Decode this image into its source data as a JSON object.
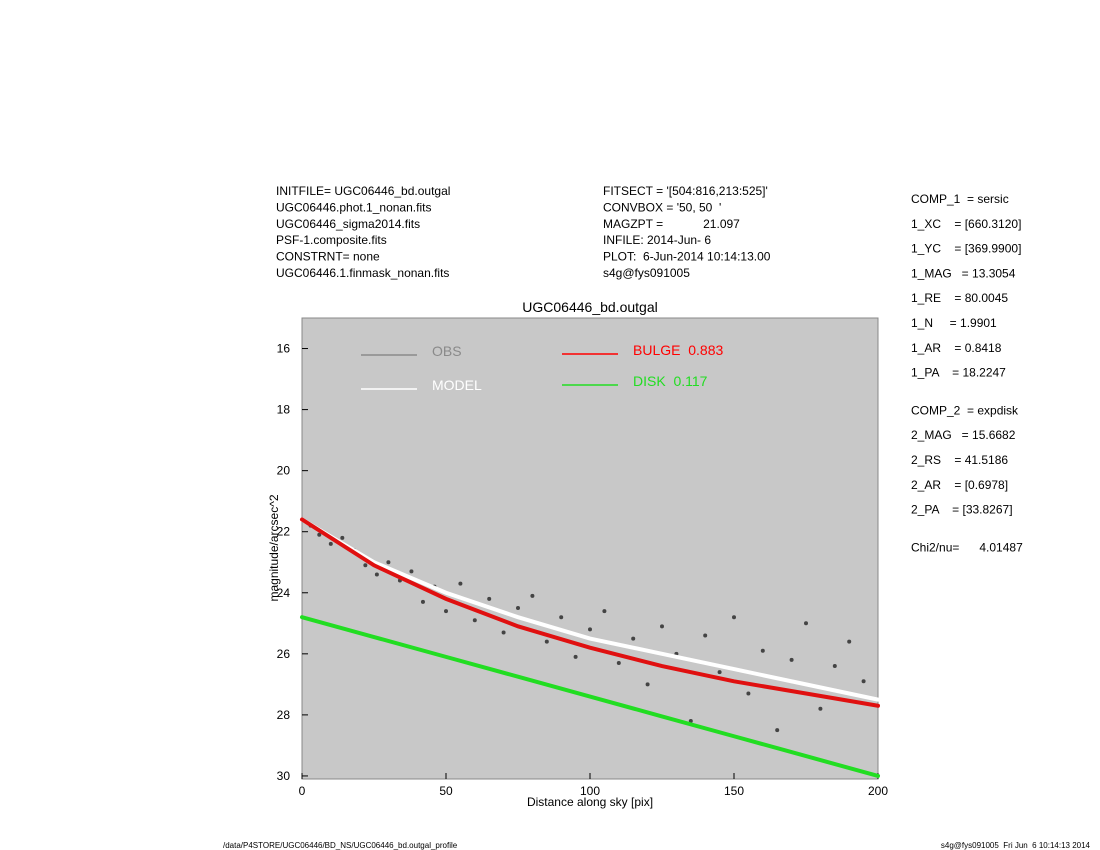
{
  "header_left": [
    "INITFILE= UGC06446_bd.outgal",
    "UGC06446.phot.1_nonan.fits",
    "UGC06446_sigma2014.fits",
    "PSF-1.composite.fits",
    "CONSTRNT= none",
    "UGC06446.1.finmask_nonan.fits"
  ],
  "header_mid": [
    "FITSECT = '[504:816,213:525]'",
    "CONVBOX = '50, 50  '",
    "MAGZPT =            21.097",
    "INFILE: 2014-Jun- 6",
    "PLOT:  6-Jun-2014 10:14:13.00",
    "s4g@fys091005"
  ],
  "params": [
    [
      "COMP_1  = sersic",
      "1_XC    = [660.3120]",
      "1_YC    = [369.9900]",
      "1_MAG   = 13.3054",
      "1_RE    = 80.0045",
      "1_N     = 1.9901",
      "1_AR    = 0.8418",
      "1_PA    = 18.2247"
    ],
    [
      "COMP_2  = expdisk",
      "2_MAG   = 15.6682",
      "2_RS    = 41.5186",
      "2_AR    = [0.6978]",
      "2_PA    = [33.8267]"
    ],
    [
      "Chi2/nu=      4.01487"
    ]
  ],
  "footer_left": "/data/P4STORE/UGC06446/BD_NS/UGC06446_bd.outgal_profile",
  "footer_right": "s4g@fys091005  Fri Jun  6 10:14:13 2014",
  "chart_data": {
    "type": "scatter",
    "title": "UGC06446_bd.outgal",
    "x_label": "Distance along sky [pix]",
    "y_label": "magnitude/arcsec^2",
    "xlim": [
      0,
      200
    ],
    "xticks": [
      0,
      50,
      100,
      150,
      200
    ],
    "ylim": [
      15,
      30.1
    ],
    "y_inverted": true,
    "yticks": [
      16,
      18,
      20,
      22,
      24,
      26,
      28,
      30
    ],
    "background": "#c8c8c8",
    "series": [
      {
        "name": "OBS",
        "color": "#444444",
        "legend_color": "#8a8a8a",
        "kind": "points",
        "x": [
          3,
          6,
          10,
          14,
          18,
          22,
          26,
          30,
          34,
          38,
          42,
          46,
          50,
          55,
          60,
          65,
          70,
          75,
          80,
          85,
          90,
          95,
          100,
          105,
          110,
          115,
          120,
          125,
          130,
          135,
          140,
          145,
          150,
          155,
          160,
          165,
          170,
          175,
          180,
          185,
          190,
          195
        ],
        "values": [
          21.8,
          22.1,
          22.4,
          22.2,
          22.6,
          23.1,
          23.4,
          23.0,
          23.6,
          23.3,
          24.3,
          23.8,
          24.6,
          23.7,
          24.9,
          24.2,
          25.3,
          24.5,
          24.1,
          25.6,
          24.8,
          26.1,
          25.2,
          24.6,
          26.3,
          25.5,
          27.0,
          25.1,
          26.0,
          28.2,
          25.4,
          26.6,
          24.8,
          27.3,
          25.9,
          28.5,
          26.2,
          25.0,
          27.8,
          26.4,
          25.6,
          26.9
        ]
      },
      {
        "name": "MODEL",
        "color": "#ffffff",
        "legend_color": "#ffffff",
        "kind": "line",
        "x": [
          0,
          25,
          50,
          75,
          100,
          125,
          150,
          175,
          200
        ],
        "values": [
          21.6,
          23.0,
          24.0,
          24.8,
          25.5,
          26.0,
          26.5,
          27.0,
          27.5
        ]
      },
      {
        "name": "BULGE  0.883",
        "color": "#e01010",
        "legend_color": "#ff0000",
        "kind": "line",
        "x": [
          0,
          25,
          50,
          75,
          100,
          125,
          150,
          175,
          200
        ],
        "values": [
          21.6,
          23.1,
          24.2,
          25.1,
          25.8,
          26.4,
          26.9,
          27.3,
          27.7
        ]
      },
      {
        "name": "DISK  0.117",
        "color": "#22dd22",
        "legend_color": "#22dd22",
        "kind": "line",
        "x": [
          0,
          25,
          50,
          75,
          100,
          125,
          150,
          175,
          200
        ],
        "values": [
          24.8,
          25.45,
          26.1,
          26.75,
          27.4,
          28.05,
          28.7,
          29.35,
          30.0
        ]
      }
    ]
  }
}
